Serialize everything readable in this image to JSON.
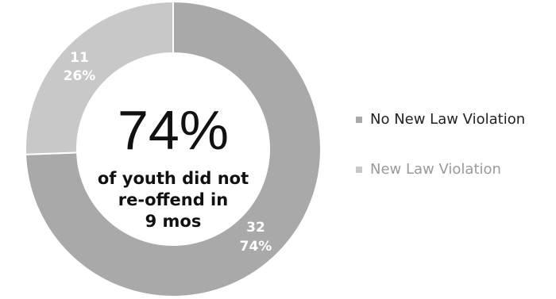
{
  "chart_data": {
    "type": "pie",
    "categories": [
      "No New Law Violation",
      "New Law Violation"
    ],
    "values": [
      32,
      11
    ],
    "percent_labels": [
      "74%",
      "26%"
    ],
    "center_text": {
      "big": "74%",
      "line1": "of youth did not",
      "line2": "re-offend in",
      "line3": "9 mos"
    },
    "colors": [
      "#a9a9a9",
      "#c8c8c8"
    ],
    "legend_position": "right",
    "legend": [
      "No New Law Violation",
      "New Law Violation"
    ]
  }
}
